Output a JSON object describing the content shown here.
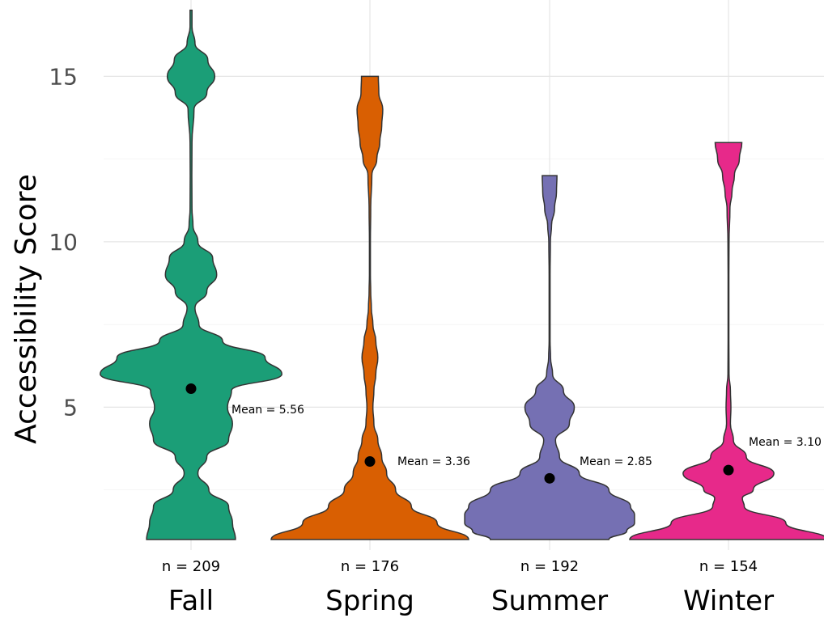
{
  "chart_data": {
    "type": "violin",
    "ylabel": "Accessibility Score",
    "ylim": [
      0.9,
      17.2
    ],
    "y_ticks": [
      "5",
      "10",
      "15"
    ],
    "grid": true,
    "categories": [
      "Fall",
      "Spring",
      "Summer",
      "Winter"
    ],
    "n_labels": [
      "n = 209",
      "n = 176",
      "n = 192",
      "n = 154"
    ],
    "means": [
      5.56,
      3.36,
      2.85,
      3.1
    ],
    "mean_labels": [
      "Mean = 5.56",
      "Mean = 3.36",
      "Mean = 2.85",
      "Mean = 3.10"
    ],
    "colors": [
      "#1b9e77",
      "#d95f02",
      "#7570b3",
      "#e7298a"
    ],
    "series": [
      {
        "name": "Fall",
        "range": [
          1,
          17
        ],
        "density": [
          [
            1,
            0.45
          ],
          [
            1.5,
            0.42
          ],
          [
            2,
            0.38
          ],
          [
            2.5,
            0.18
          ],
          [
            3,
            0.07
          ],
          [
            3.5,
            0.16
          ],
          [
            4,
            0.38
          ],
          [
            4.5,
            0.42
          ],
          [
            5,
            0.37
          ],
          [
            5.5,
            0.41
          ],
          [
            6,
            0.92
          ],
          [
            6.5,
            0.75
          ],
          [
            7,
            0.32
          ],
          [
            7.5,
            0.08
          ],
          [
            8,
            0.04
          ],
          [
            8.5,
            0.16
          ],
          [
            9,
            0.26
          ],
          [
            9.5,
            0.22
          ],
          [
            10,
            0.07
          ],
          [
            10.5,
            0.02
          ],
          [
            11,
            0.01
          ],
          [
            12,
            0.008
          ],
          [
            13,
            0.01
          ],
          [
            14,
            0.03
          ],
          [
            14.5,
            0.16
          ],
          [
            15,
            0.24
          ],
          [
            15.5,
            0.17
          ],
          [
            16,
            0.04
          ],
          [
            16.5,
            0.01
          ],
          [
            17,
            0.01
          ]
        ]
      },
      {
        "name": "Spring",
        "range": [
          1,
          15
        ],
        "density": [
          [
            1,
            1.0
          ],
          [
            1.5,
            0.68
          ],
          [
            2,
            0.42
          ],
          [
            2.5,
            0.26
          ],
          [
            3,
            0.17
          ],
          [
            3.5,
            0.12
          ],
          [
            4,
            0.08
          ],
          [
            4.5,
            0.04
          ],
          [
            5,
            0.03
          ],
          [
            5.5,
            0.04
          ],
          [
            6,
            0.06
          ],
          [
            6.5,
            0.08
          ],
          [
            7,
            0.06
          ],
          [
            7.5,
            0.03
          ],
          [
            8,
            0.015
          ],
          [
            8.5,
            0.008
          ],
          [
            9,
            0.005
          ],
          [
            10,
            0.005
          ],
          [
            11,
            0.008
          ],
          [
            12,
            0.02
          ],
          [
            12.5,
            0.07
          ],
          [
            13,
            0.1
          ],
          [
            13.5,
            0.12
          ],
          [
            14,
            0.13
          ],
          [
            14.5,
            0.09
          ],
          [
            15,
            0.085
          ]
        ]
      },
      {
        "name": "Summer",
        "range": [
          1,
          12
        ],
        "density": [
          [
            1,
            0.6
          ],
          [
            1.25,
            0.78
          ],
          [
            1.5,
            0.86
          ],
          [
            1.75,
            0.86
          ],
          [
            2,
            0.82
          ],
          [
            2.5,
            0.6
          ],
          [
            3,
            0.3
          ],
          [
            3.5,
            0.1
          ],
          [
            4,
            0.06
          ],
          [
            4.5,
            0.2
          ],
          [
            5,
            0.25
          ],
          [
            5.5,
            0.14
          ],
          [
            6,
            0.03
          ],
          [
            6.5,
            0.01
          ],
          [
            7,
            0.005
          ],
          [
            8,
            0.005
          ],
          [
            9,
            0.005
          ],
          [
            10,
            0.008
          ],
          [
            10.5,
            0.02
          ],
          [
            11,
            0.05
          ],
          [
            11.5,
            0.07
          ],
          [
            12,
            0.075
          ]
        ]
      },
      {
        "name": "Winter",
        "range": [
          1,
          13
        ],
        "density": [
          [
            1,
            1.0
          ],
          [
            1.5,
            0.58
          ],
          [
            2,
            0.16
          ],
          [
            2.25,
            0.14
          ],
          [
            2.5,
            0.25
          ],
          [
            3,
            0.46
          ],
          [
            3.5,
            0.18
          ],
          [
            4,
            0.05
          ],
          [
            4.5,
            0.02
          ],
          [
            5,
            0.025
          ],
          [
            5.5,
            0.02
          ],
          [
            6,
            0.006
          ],
          [
            7,
            0.004
          ],
          [
            8,
            0.004
          ],
          [
            9,
            0.004
          ],
          [
            10,
            0.006
          ],
          [
            11,
            0.015
          ],
          [
            11.5,
            0.035
          ],
          [
            12,
            0.06
          ],
          [
            12.5,
            0.11
          ],
          [
            13,
            0.135
          ]
        ]
      }
    ]
  }
}
